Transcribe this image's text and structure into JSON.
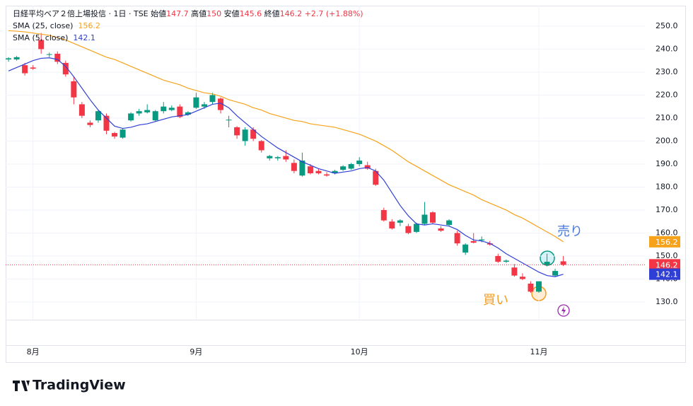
{
  "chart_data": {
    "type": "candlestick",
    "header": {
      "symbol": "日経平均ベア２倍上場投信 · 1日 · TSE",
      "open_label": "始値",
      "open": 147.7,
      "high_label": "高値",
      "high": 150.0,
      "low_label": "安値",
      "low": 145.6,
      "close_label": "終値",
      "close": 146.2,
      "change": "+2.7 (+1.88%)"
    },
    "candles": {
      "open": [
        235.5,
        235.5,
        233,
        232,
        244,
        237.5,
        238,
        234,
        226,
        216,
        208,
        209,
        211,
        203.5,
        201.5,
        209,
        212,
        212.5,
        209,
        213,
        213.5,
        215,
        211.5,
        214.5,
        215,
        217,
        218.5,
        209,
        206,
        200,
        205,
        200,
        192.5,
        192.5,
        193.5,
        190.5,
        185,
        189,
        187,
        185.5,
        186,
        187.5,
        188,
        190,
        189.5,
        187,
        170,
        165,
        164.5,
        163,
        160.5,
        164,
        169,
        162,
        163.5,
        160,
        151.5,
        156.5,
        156.8,
        155.5,
        150,
        147.5,
        145,
        141,
        138,
        134.5,
        146,
        141.5,
        147.7
      ],
      "high": [
        236.5,
        237,
        234,
        233,
        247,
        238.5,
        239,
        235,
        228,
        217,
        209,
        213.5,
        212,
        204,
        205.5,
        212.5,
        214,
        216,
        213.5,
        217,
        215.5,
        216,
        213,
        221,
        217,
        221,
        219,
        211,
        206.5,
        206,
        206,
        200.5,
        194,
        193.5,
        196,
        192,
        195,
        190,
        188,
        186.5,
        187.5,
        189.5,
        190.5,
        193,
        191,
        188,
        171,
        166,
        166,
        164,
        164.5,
        173.5,
        169.5,
        163,
        166,
        161,
        155.5,
        160,
        158.5,
        156.5,
        151,
        148.5,
        146.5,
        142.5,
        139,
        139,
        151,
        144.5,
        150.0
      ],
      "low": [
        234.5,
        235,
        228.5,
        231,
        238,
        236.5,
        233.5,
        228,
        216,
        210,
        206,
        208,
        203,
        201,
        201,
        208.5,
        211,
        212,
        208.5,
        212,
        213,
        210,
        211,
        214,
        214,
        216,
        212,
        206,
        201,
        198,
        200,
        195,
        191.5,
        191.5,
        191,
        186,
        184.5,
        185.5,
        185.5,
        184.5,
        185.5,
        187,
        187.5,
        189,
        187.5,
        180.5,
        165,
        161.5,
        163,
        159.5,
        160,
        163.5,
        164,
        160.5,
        163,
        154.5,
        150.5,
        155.5,
        156,
        154.5,
        147,
        147,
        141,
        139.5,
        134,
        134,
        145.5,
        141,
        145.6
      ],
      "close": [
        236,
        236.5,
        229.5,
        231.5,
        240,
        237.8,
        234.5,
        229,
        219,
        211,
        207,
        213,
        204.5,
        202,
        205,
        212,
        213,
        213.5,
        213,
        215,
        214.5,
        210.5,
        212.5,
        219,
        216,
        220,
        213.5,
        209.3,
        202.5,
        205,
        201,
        196,
        193.5,
        193,
        192,
        187,
        191.5,
        186,
        186,
        185,
        187,
        189,
        190,
        191.5,
        188,
        181,
        165.5,
        162,
        165.5,
        160,
        164,
        168,
        164.5,
        161,
        165.5,
        155.5,
        155,
        155.8,
        157.2,
        155,
        147.5,
        148,
        141.5,
        140,
        134.5,
        139,
        147.5,
        143.5,
        146.2
      ],
      "up_color": "#089981",
      "down_color": "#f23645"
    },
    "series": [
      {
        "name": "SMA (25, close)",
        "color": "#f7a21b",
        "values": [
          248,
          247.8,
          247.5,
          247,
          246.5,
          246,
          245,
          244,
          242.5,
          241,
          239.5,
          238,
          236.5,
          235.5,
          234,
          232.5,
          231,
          229.5,
          228,
          226.5,
          225.5,
          224.5,
          223,
          222,
          221,
          220.5,
          219.5,
          218,
          217,
          216,
          214.5,
          213.5,
          212,
          211,
          210,
          209,
          208.5,
          207.5,
          207,
          206.5,
          206,
          205,
          204,
          203,
          201.5,
          200,
          198,
          196,
          193.5,
          191,
          189,
          187,
          185,
          183,
          181,
          179.5,
          178,
          176.5,
          174.5,
          173,
          171.5,
          170,
          168,
          166.5,
          164.5,
          162.5,
          160.5,
          158.5,
          156.2
        ]
      },
      {
        "name": "SMA (5, close)",
        "color": "#2f3fd6",
        "values": [
          230.5,
          232,
          233.5,
          235,
          236,
          236.2,
          235.5,
          232.5,
          228,
          223,
          218,
          213.5,
          210,
          206.5,
          205.5,
          206,
          207,
          207.5,
          208.5,
          209.5,
          210.5,
          211,
          211.5,
          213,
          214.5,
          216,
          216.5,
          214.5,
          211,
          208,
          205,
          202,
          199.5,
          197,
          195,
          193,
          191,
          189.5,
          188,
          187,
          186,
          186.5,
          187,
          188,
          188.5,
          187,
          183,
          177.5,
          172,
          167.5,
          164,
          163.5,
          164,
          163.5,
          163,
          161.5,
          159,
          157,
          156.5,
          155.5,
          153.5,
          151,
          149,
          147,
          145,
          143,
          141.5,
          141,
          142.1
        ]
      }
    ],
    "xlim": [
      -0.35,
      78
    ],
    "xticks": [
      {
        "value": 3,
        "label": "8月"
      },
      {
        "value": 23,
        "label": "9月"
      },
      {
        "value": 43,
        "label": "10月"
      },
      {
        "value": 65,
        "label": "11月"
      }
    ],
    "ylim": [
      122.3,
      258.9
    ],
    "yticks": [
      {
        "value": 130,
        "label": "130.0"
      },
      {
        "value": 140,
        "label": "140.0"
      },
      {
        "value": 150,
        "label": "150.0"
      },
      {
        "value": 160,
        "label": "160.0"
      },
      {
        "value": 170,
        "label": "170.0"
      },
      {
        "value": 180,
        "label": "180.0"
      },
      {
        "value": 190,
        "label": "190.0"
      },
      {
        "value": 200,
        "label": "200.0"
      },
      {
        "value": 210,
        "label": "210.0"
      },
      {
        "value": 220,
        "label": "220.0"
      },
      {
        "value": 230,
        "label": "230.0"
      },
      {
        "value": 240,
        "label": "240.0"
      },
      {
        "value": 250,
        "label": "250.0"
      }
    ],
    "grid": true,
    "annotations": [
      {
        "text": "売り",
        "color": "#4a78d9"
      },
      {
        "text": "買い",
        "color": "#f29c1f"
      }
    ],
    "logo": "TradingView"
  }
}
